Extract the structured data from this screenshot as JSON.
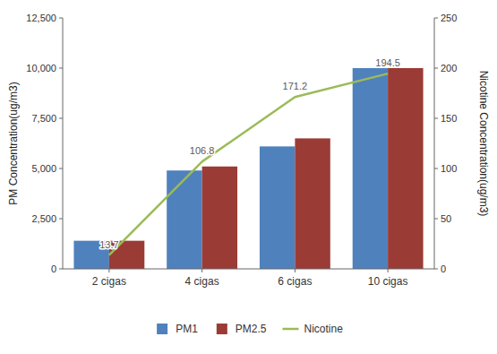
{
  "chart_data": {
    "type": "bar",
    "categories": [
      "2 cigas",
      "4 cigas",
      "6 cigas",
      "10 cigas"
    ],
    "series": [
      {
        "name": "PM1",
        "color": "#4F81BD",
        "values": [
          1400,
          4900,
          6100,
          10000
        ]
      },
      {
        "name": "PM2.5",
        "color": "#9B3B35",
        "values": [
          1400,
          5100,
          6500,
          10000
        ]
      },
      {
        "name": "Nicotine",
        "type": "line",
        "axis": "y2",
        "color": "#9BBB59",
        "data_labels": true,
        "values": [
          13.7,
          106.8,
          171.2,
          194.5
        ]
      }
    ],
    "ylabel": "PM Concentration(ug/m3)",
    "y2label": "Nicotine Concentration(ug/m3)",
    "ylim": [
      0,
      12500
    ],
    "yticks": [
      0,
      {
        "value": 2500,
        "label": "2,500"
      },
      {
        "value": 5000,
        "label": "5,000"
      },
      {
        "value": 7500,
        "label": "7,500"
      },
      {
        "value": 10000,
        "label": "10,000"
      },
      {
        "value": 12500,
        "label": "12,500"
      }
    ],
    "y2lim": [
      0,
      250
    ],
    "y2ticks": [
      0,
      50,
      100,
      150,
      200,
      250
    ],
    "grid": false,
    "legend": "bottom"
  }
}
